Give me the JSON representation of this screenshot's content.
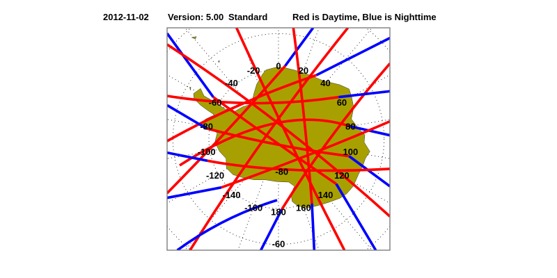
{
  "title": {
    "date": "2012-11-02",
    "version": "Version: 5.00",
    "mode": "Standard",
    "legend": "Red is Daytime, Blue is Nighttime"
  },
  "map": {
    "projection": "south-polar-stereographic",
    "land_color": "#a8a000",
    "day_color": "#ff0000",
    "night_color": "#0000ff",
    "longitude_labels": [
      "0",
      "20",
      "40",
      "60",
      "80",
      "100",
      "120",
      "140",
      "160",
      "180",
      "-160",
      "-140",
      "-120",
      "-100",
      "-80",
      "-60",
      "-40",
      "-20"
    ],
    "latitude_labels": [
      "-80",
      "-60"
    ]
  }
}
